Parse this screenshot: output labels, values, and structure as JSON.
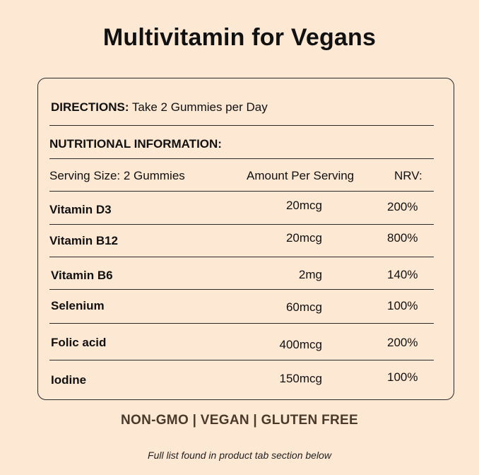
{
  "title": "Multivitamin for Vegans",
  "directions": {
    "label": "DIRECTIONS:",
    "value": "Take 2 Gummies per Day"
  },
  "nutritional_heading": "NUTRITIONAL INFORMATION:",
  "table": {
    "headers": {
      "serving": "Serving Size: 2 Gummies",
      "amount": "Amount Per Serving",
      "nrv": "NRV:"
    },
    "rows": [
      {
        "name": "Vitamin D3",
        "amount": "20mcg",
        "nrv": "200%"
      },
      {
        "name": "Vitamin B12",
        "amount": "20mcg",
        "nrv": "800%"
      },
      {
        "name": "Vitamin B6",
        "amount": "2mg",
        "nrv": "140%"
      },
      {
        "name": "Selenium",
        "amount": "60mcg",
        "nrv": "100%"
      },
      {
        "name": "Folic acid",
        "amount": "400mcg",
        "nrv": "200%"
      },
      {
        "name": "Iodine",
        "amount": "150mcg",
        "nrv": "100%"
      }
    ]
  },
  "badges": "NON-GMO | VEGAN | GLUTEN FREE",
  "footnote": "Full list found in product tab section below"
}
